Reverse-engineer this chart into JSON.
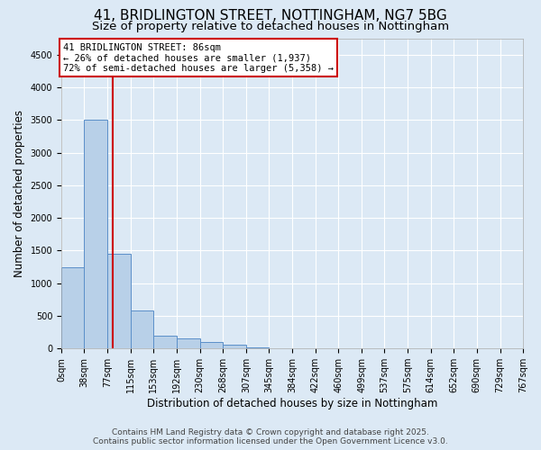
{
  "title_line1": "41, BRIDLINGTON STREET, NOTTINGHAM, NG7 5BG",
  "title_line2": "Size of property relative to detached houses in Nottingham",
  "xlabel": "Distribution of detached houses by size in Nottingham",
  "ylabel": "Number of detached properties",
  "bin_edges": [
    0,
    38,
    77,
    115,
    153,
    192,
    230,
    268,
    307,
    345,
    384,
    422,
    460,
    499,
    537,
    575,
    614,
    652,
    690,
    729,
    767
  ],
  "bar_heights": [
    1250,
    3500,
    1450,
    580,
    200,
    150,
    100,
    60,
    20,
    5,
    3,
    2,
    1,
    0,
    0,
    0,
    0,
    0,
    0,
    0
  ],
  "bar_color": "#b8d0e8",
  "bar_edge_color": "#5b8fc9",
  "property_size": 86,
  "property_label": "41 BRIDLINGTON STREET: 86sqm",
  "annotation_line2": "← 26% of detached houses are smaller (1,937)",
  "annotation_line3": "72% of semi-detached houses are larger (5,358) →",
  "vline_color": "#cc0000",
  "annotation_box_color": "#cc0000",
  "ylim": [
    0,
    4750
  ],
  "yticks": [
    0,
    500,
    1000,
    1500,
    2000,
    2500,
    3000,
    3500,
    4000,
    4500
  ],
  "background_color": "#dce9f5",
  "plot_bg_color": "#dce9f5",
  "footer_line1": "Contains HM Land Registry data © Crown copyright and database right 2025.",
  "footer_line2": "Contains public sector information licensed under the Open Government Licence v3.0.",
  "title_fontsize": 11,
  "subtitle_fontsize": 9.5,
  "axis_label_fontsize": 8.5,
  "tick_fontsize": 7,
  "footer_fontsize": 6.5,
  "annotation_fontsize": 7.5
}
